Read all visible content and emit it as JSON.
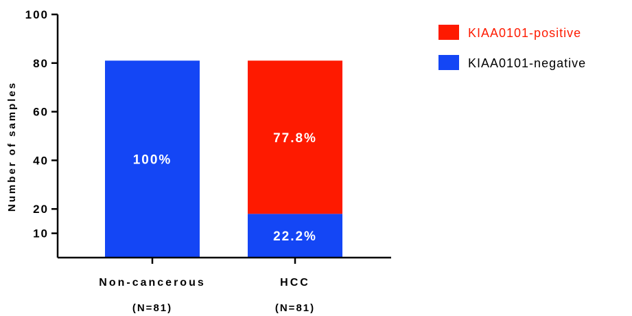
{
  "chart_data": {
    "type": "bar",
    "stacked": true,
    "categories": [
      "Non-cancerous",
      "HCC"
    ],
    "category_n_labels": [
      "(N=81)",
      "(N=81)"
    ],
    "series": [
      {
        "name": "KIAA0101-negative",
        "color": "#1446f5",
        "values": [
          81,
          18
        ],
        "data_labels": [
          "100%",
          "22.2%"
        ]
      },
      {
        "name": "KIAA0101-positive",
        "color": "#fe1a00",
        "values": [
          0,
          63
        ],
        "data_labels": [
          "",
          "77.8%"
        ]
      }
    ],
    "title": "",
    "xlabel": "",
    "ylabel": "Number of samples",
    "yticks": [
      10,
      20,
      40,
      60,
      80,
      100
    ],
    "ylim": [
      0,
      100
    ],
    "grid": false,
    "legend": {
      "placement": "top-right",
      "entries": [
        {
          "label": "KIAA0101-positive",
          "color": "#fe1a00",
          "text_color": "#fe1a00"
        },
        {
          "label": "KIAA0101-negative",
          "color": "#1446f5",
          "text_color": "#000000"
        }
      ]
    }
  }
}
